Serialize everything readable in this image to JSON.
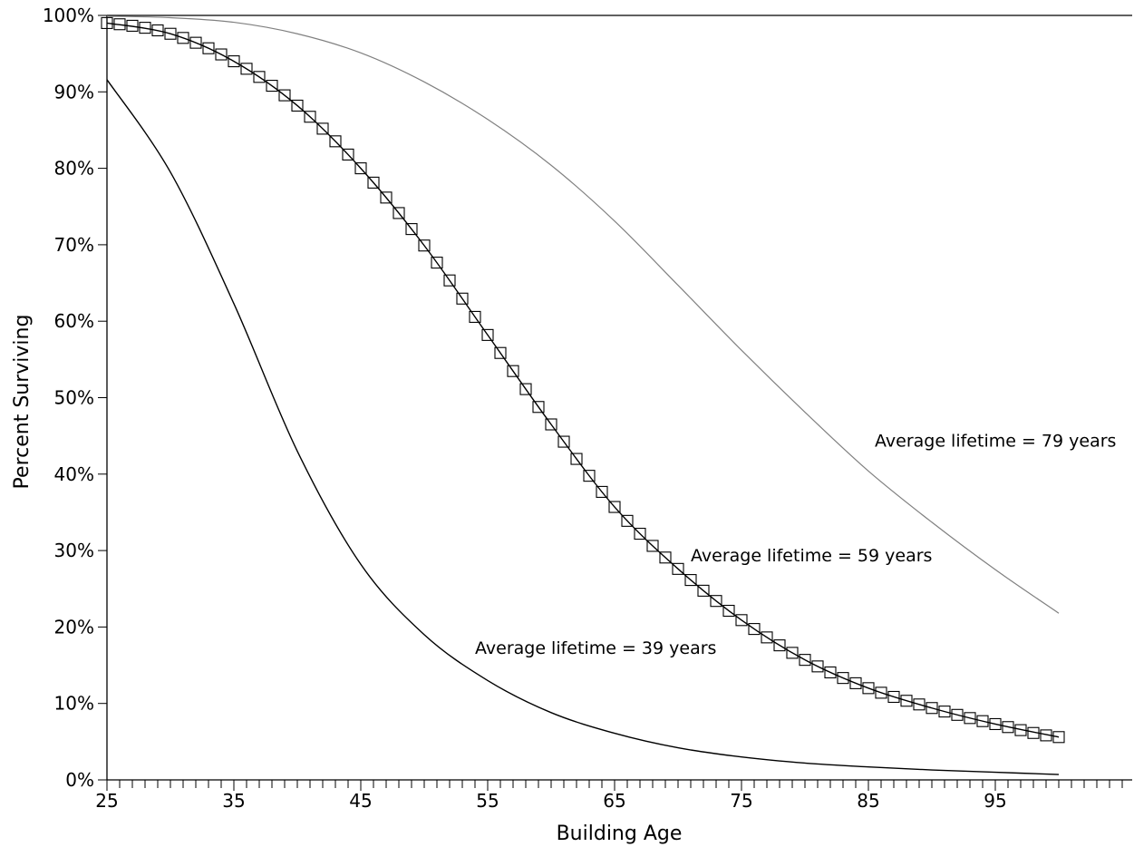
{
  "chart_data": {
    "type": "line",
    "title": "",
    "xlabel": "Building Age",
    "ylabel": "Percent Surviving",
    "xlim": [
      25,
      100
    ],
    "ylim": [
      0,
      100
    ],
    "x_ticks": [
      25,
      35,
      45,
      55,
      65,
      75,
      85,
      95
    ],
    "y_ticks": [
      0,
      10,
      20,
      30,
      40,
      50,
      60,
      70,
      80,
      90,
      100
    ],
    "y_tick_labels": [
      "0%",
      "10%",
      "20%",
      "30%",
      "40%",
      "50%",
      "60%",
      "70%",
      "80%",
      "90%",
      "100%"
    ],
    "grid": false,
    "x": [
      25,
      30,
      35,
      40,
      45,
      50,
      55,
      60,
      65,
      70,
      75,
      80,
      85,
      90,
      95,
      100
    ],
    "series": [
      {
        "id": "lifetime-39",
        "values": [
          91.6,
          79.5,
          62.3,
          43.0,
          28.2,
          19.0,
          13.0,
          8.8,
          6.1,
          4.2,
          3.0,
          2.2,
          1.7,
          1.3,
          1.0,
          0.7
        ],
        "color": "#000000",
        "marker": "none",
        "annotation": "Average lifetime = 39 years",
        "annotation_anchor": [
          54,
          16.5
        ]
      },
      {
        "id": "lifetime-59",
        "values": [
          99.0,
          97.6,
          94.0,
          88.2,
          80.0,
          69.9,
          58.2,
          46.5,
          35.7,
          27.6,
          20.9,
          15.7,
          12.0,
          9.4,
          7.3,
          5.6
        ],
        "color": "#000000",
        "marker": "square",
        "annotation": "Average lifetime = 59 years",
        "annotation_anchor": [
          71,
          28.6
        ]
      },
      {
        "id": "lifetime-79",
        "values": [
          99.9,
          99.7,
          99.1,
          97.6,
          95.1,
          91.3,
          86.4,
          80.4,
          73.1,
          64.7,
          56.2,
          48.1,
          40.4,
          33.7,
          27.5,
          21.8
        ],
        "color": "#808080",
        "marker": "none",
        "annotation": "Average lifetime = 79 years",
        "annotation_anchor": [
          85.5,
          43.6
        ]
      }
    ]
  }
}
